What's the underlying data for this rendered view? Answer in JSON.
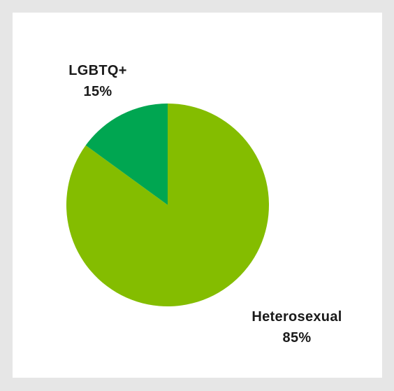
{
  "chart_data": {
    "type": "pie",
    "title": "",
    "start_angle_deg": 0,
    "direction": "counterclockwise",
    "slices": [
      {
        "category": "Heterosexual",
        "value": 85,
        "value_label": "85%",
        "color": "#84bd00"
      },
      {
        "category": "LGBTQ+",
        "value": 15,
        "value_label": "15%",
        "color": "#00a651"
      }
    ],
    "legend": "none"
  },
  "colors": {
    "page_background": "#e6e6e6",
    "card_background": "#ffffff",
    "label_text": "#1a1a1a"
  }
}
